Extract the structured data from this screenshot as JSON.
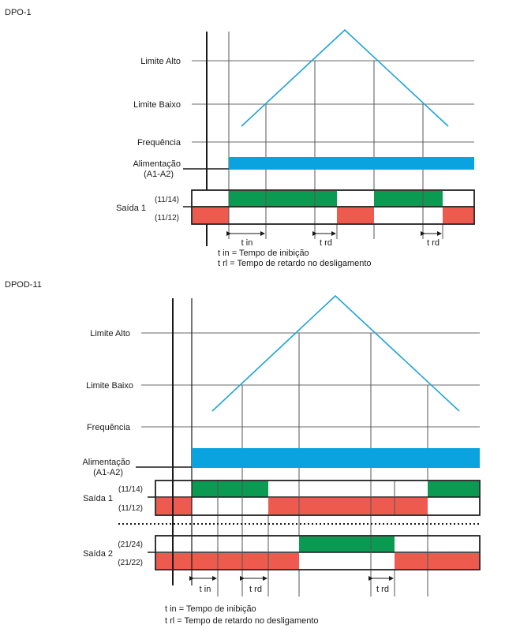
{
  "colors": {
    "triangle": "#1fa3d8",
    "supply_bar": "#0aa3df",
    "contact_on": "#0a9a52",
    "contact_off": "#ef5a4e",
    "line": "#2a2a2a",
    "grid": "#6a6a6a"
  },
  "dpo1": {
    "title": "DPO-1",
    "labels": {
      "limite_alto": "Limite Alto",
      "limite_baixo": "Limite Baixo",
      "frequencia": "Frequência",
      "alimentacao_1": "Alimentação",
      "alimentacao_2": "(A1-A2)",
      "saida1": "Saída 1",
      "t1114": "(11/14)",
      "t1112": "(11/12)"
    },
    "timings": {
      "tin": "t in",
      "trd_a": "t rd",
      "trd_b": "t rd"
    },
    "legend": {
      "tin": "t in = Tempo de inibição",
      "trl": "t rl = Tempo de retardo no desligamento"
    }
  },
  "dpod11": {
    "title": "DPOD-11",
    "labels": {
      "limite_alto": "Limite Alto",
      "limite_baixo": "Limite Baixo",
      "frequencia": "Frequência",
      "alimentacao_1": "Alimentação",
      "alimentacao_2": "(A1-A2)",
      "saida1": "Saída 1",
      "saida2": "Saída 2",
      "t1114": "(11/14)",
      "t1112": "(11/12)",
      "t2124": "(21/24)",
      "t2122": "(21/22)"
    },
    "timings": {
      "tin": "t in",
      "trd_a": "t rd",
      "trd_b": "t rd"
    },
    "legend": {
      "tin": "t in = Tempo de inibição",
      "trl": "t rl = Tempo de retardo no desligamento"
    }
  }
}
